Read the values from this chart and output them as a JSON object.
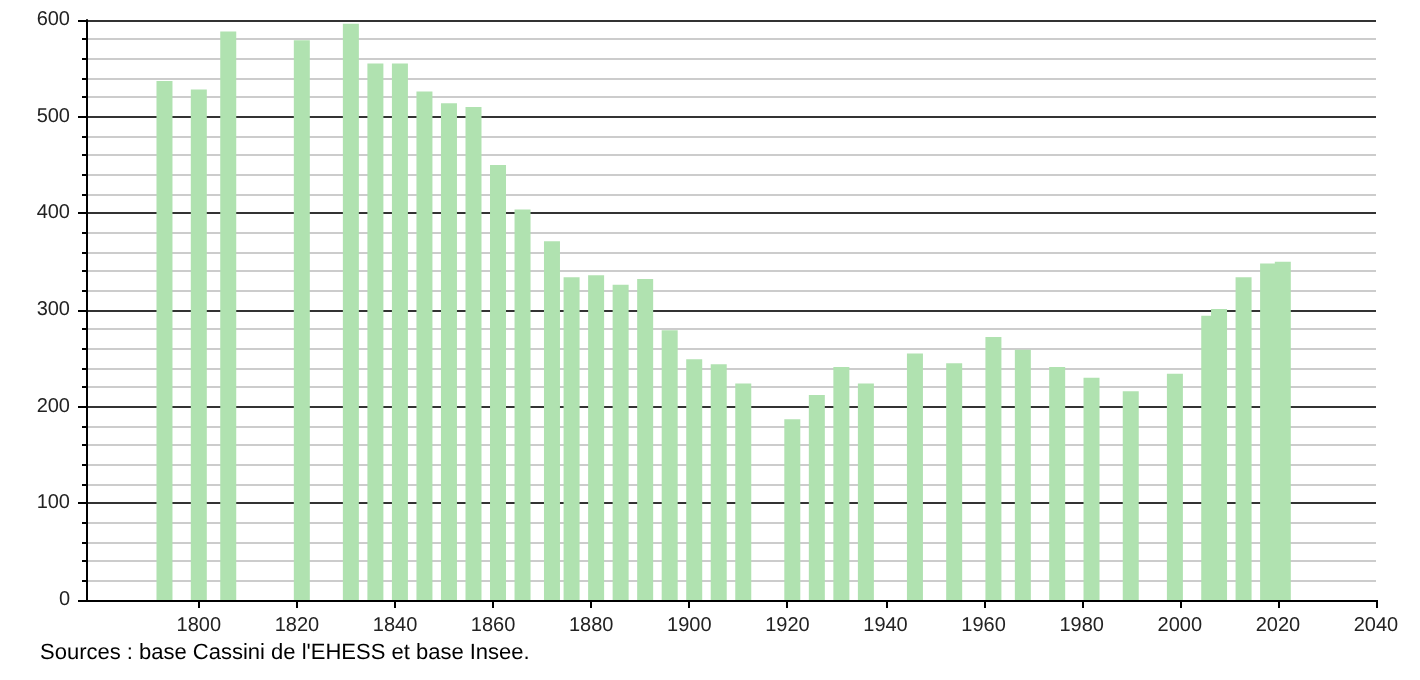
{
  "chart_data": {
    "type": "bar",
    "x": [
      1793,
      1800,
      1806,
      1821,
      1831,
      1836,
      1841,
      1846,
      1851,
      1856,
      1861,
      1866,
      1872,
      1876,
      1881,
      1886,
      1891,
      1896,
      1901,
      1906,
      1911,
      1921,
      1926,
      1931,
      1936,
      1946,
      1954,
      1962,
      1968,
      1975,
      1982,
      1990,
      1999,
      2006,
      2008,
      2013,
      2018,
      2021
    ],
    "values": [
      537,
      528,
      588,
      579,
      596,
      555,
      555,
      526,
      514,
      510,
      450,
      404,
      371,
      334,
      336,
      326,
      332,
      279,
      249,
      244,
      224,
      187,
      212,
      241,
      224,
      255,
      245,
      272,
      259,
      241,
      230,
      216,
      234,
      294,
      301,
      334,
      348,
      350
    ],
    "color": "#b0e2b0",
    "xlim": [
      1777,
      2040
    ],
    "xticks": [
      1800,
      1820,
      1840,
      1860,
      1880,
      1900,
      1920,
      1940,
      1960,
      1980,
      2000,
      2020,
      2040
    ],
    "ylim": [
      0,
      600
    ],
    "yticks": [
      0,
      100,
      200,
      300,
      400,
      500,
      600
    ],
    "grid": "y",
    "annotations": [
      "Sources : base Cassini de l'EHESS et base Insee."
    ]
  }
}
